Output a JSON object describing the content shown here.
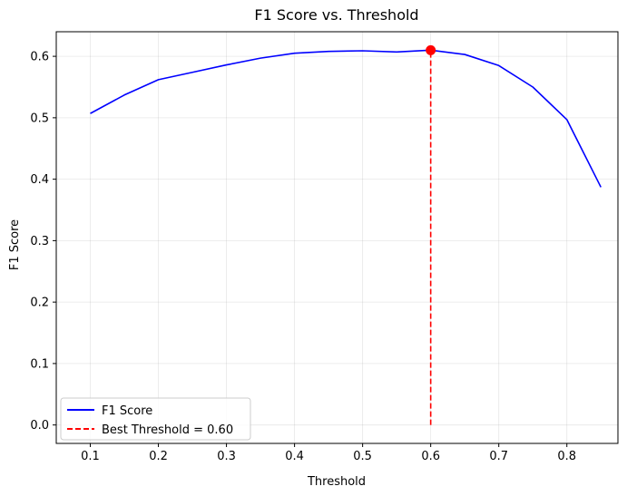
{
  "chart_data": {
    "type": "line",
    "title": "F1 Score vs. Threshold",
    "xlabel": "Threshold",
    "ylabel": "F1 Score",
    "xlim": [
      0.05,
      0.875
    ],
    "ylim": [
      -0.03,
      0.64
    ],
    "xticks": [
      0.1,
      0.2,
      0.3,
      0.4,
      0.5,
      0.6,
      0.7,
      0.8
    ],
    "xtick_labels": [
      "0.1",
      "0.2",
      "0.3",
      "0.4",
      "0.5",
      "0.6",
      "0.7",
      "0.8"
    ],
    "yticks": [
      0.0,
      0.1,
      0.2,
      0.3,
      0.4,
      0.5,
      0.6
    ],
    "ytick_labels": [
      "0.0",
      "0.1",
      "0.2",
      "0.3",
      "0.4",
      "0.5",
      "0.6"
    ],
    "grid": true,
    "legend_position": "lower-left",
    "series": [
      {
        "name": "F1 Score",
        "color": "#0000ff",
        "style": "solid",
        "x": [
          0.1,
          0.15,
          0.2,
          0.25,
          0.3,
          0.35,
          0.4,
          0.45,
          0.5,
          0.55,
          0.6,
          0.65,
          0.7,
          0.75,
          0.8,
          0.85
        ],
        "y": [
          0.507,
          0.537,
          0.562,
          0.574,
          0.586,
          0.597,
          0.605,
          0.608,
          0.609,
          0.607,
          0.61,
          0.603,
          0.585,
          0.55,
          0.497,
          0.387
        ]
      }
    ],
    "best_threshold": {
      "name": "Best Threshold = 0.60",
      "color": "#ff0000",
      "style": "dashed",
      "x": 0.6,
      "y": 0.61
    }
  }
}
